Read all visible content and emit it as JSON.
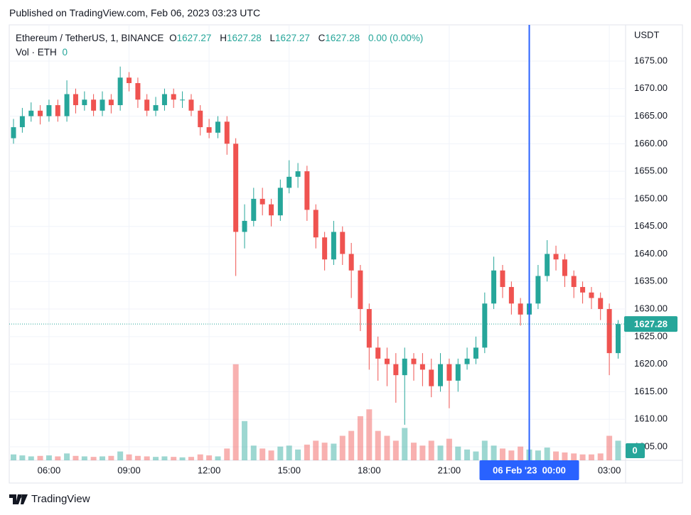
{
  "published": "Published on TradingView.com, Feb 06, 2023 03:23 UTC",
  "brand": "TradingView",
  "chart_data": {
    "type": "candlestick",
    "legend": {
      "symbol": "Ethereum / TetherUS, 1, BINANCE",
      "open_label": "O",
      "open": 1627.27,
      "high_label": "H",
      "high": 1627.28,
      "low_label": "L",
      "low": 1627.27,
      "close_label": "C",
      "close": 1627.28,
      "change": "0.00 (0.00%)",
      "volume_label": "Vol · ETH",
      "volume": 0
    },
    "currency": "USDT",
    "x": [
      4.67,
      5,
      5.33,
      5.67,
      6,
      6.33,
      6.67,
      7,
      7.33,
      7.67,
      8,
      8.33,
      8.67,
      9,
      9.33,
      9.67,
      10,
      10.33,
      10.67,
      11,
      11.33,
      11.67,
      12,
      12.33,
      12.67,
      13,
      13.33,
      13.67,
      14,
      14.33,
      14.67,
      15,
      15.33,
      15.67,
      16,
      16.33,
      16.67,
      17,
      17.33,
      17.67,
      18,
      18.33,
      18.67,
      19,
      19.33,
      19.67,
      20,
      20.33,
      20.67,
      21,
      21.33,
      21.67,
      22,
      22.33,
      22.67,
      23,
      23.33,
      23.67,
      24,
      24.33,
      24.67,
      25,
      25.33,
      25.67,
      26,
      26.33,
      26.67,
      27,
      27.33
    ],
    "open": [
      1661,
      1663,
      1665,
      1666,
      1665,
      1667,
      1665,
      1669,
      1667,
      1668,
      1666,
      1668,
      1667,
      1672,
      1671,
      1668,
      1666,
      1667,
      1669,
      1668,
      1668,
      1666,
      1663,
      1662,
      1664,
      1660,
      1644,
      1646,
      1650,
      1649,
      1647,
      1652,
      1654,
      1655,
      1648,
      1643,
      1639,
      1644,
      1640,
      1637,
      1630,
      1623,
      1621,
      1620,
      1618,
      1621,
      1620,
      1619,
      1616,
      1620,
      1617,
      1620,
      1621,
      1623,
      1631,
      1637,
      1634,
      1631,
      1629,
      1631,
      1636,
      1640,
      1639,
      1636,
      1634,
      1633,
      1632,
      1630,
      1622
    ],
    "high": [
      1664.5,
      1666.5,
      1667.5,
      1667,
      1668,
      1668,
      1671.5,
      1670,
      1669.5,
      1669,
      1669.5,
      1669,
      1674,
      1673,
      1672,
      1669,
      1668.5,
      1670,
      1670,
      1669.5,
      1669,
      1667,
      1664.5,
      1665,
      1665,
      1661,
      1649,
      1652,
      1652,
      1650,
      1653.5,
      1657,
      1656.5,
      1656,
      1649,
      1644,
      1646,
      1645,
      1642,
      1638,
      1631,
      1625,
      1623,
      1622,
      1623,
      1622,
      1622,
      1621,
      1622,
      1621,
      1621,
      1623,
      1625,
      1633,
      1639.5,
      1638,
      1635,
      1632,
      1633,
      1638,
      1642.5,
      1641.5,
      1640,
      1637,
      1635,
      1634,
      1633,
      1631,
      1628
    ],
    "low": [
      1660,
      1662,
      1664,
      1663.5,
      1664,
      1664,
      1664,
      1665.5,
      1666,
      1665,
      1665,
      1665.5,
      1666,
      1669.5,
      1666.5,
      1665,
      1665,
      1666,
      1666.5,
      1666.5,
      1665,
      1661.5,
      1661,
      1661,
      1658,
      1636,
      1641,
      1645,
      1647,
      1645,
      1646,
      1651,
      1652,
      1646,
      1641,
      1637,
      1638,
      1638,
      1632,
      1626,
      1619,
      1617,
      1616,
      1613,
      1609,
      1617,
      1616,
      1614,
      1615,
      1612,
      1615,
      1619,
      1620,
      1622,
      1630,
      1632,
      1629,
      1627,
      1628,
      1630,
      1635,
      1637,
      1634,
      1632,
      1631,
      1630,
      1628,
      1618,
      1621
    ],
    "close": [
      1663,
      1665,
      1666,
      1665,
      1667,
      1665,
      1669,
      1667,
      1668,
      1666,
      1668,
      1667,
      1672,
      1671,
      1668,
      1666,
      1667,
      1669,
      1668,
      1668,
      1666,
      1663,
      1662,
      1664,
      1660,
      1644,
      1646,
      1650,
      1649,
      1647,
      1652,
      1654,
      1655,
      1648,
      1643,
      1639,
      1644,
      1640,
      1637,
      1630,
      1623,
      1621,
      1620,
      1618,
      1621,
      1620,
      1619,
      1616,
      1620,
      1617,
      1620,
      1621,
      1623,
      1631,
      1637,
      1634,
      1631,
      1629,
      1631,
      1636,
      1640,
      1639,
      1636,
      1634,
      1633,
      1632,
      1630,
      1622,
      1627.28
    ],
    "volume": [
      60,
      50,
      40,
      45,
      50,
      40,
      70,
      45,
      40,
      35,
      40,
      45,
      90,
      60,
      45,
      40,
      35,
      40,
      35,
      30,
      35,
      60,
      50,
      40,
      120,
      980,
      400,
      150,
      120,
      100,
      140,
      150,
      110,
      160,
      200,
      180,
      170,
      250,
      300,
      450,
      520,
      300,
      250,
      200,
      330,
      180,
      150,
      200,
      150,
      220,
      140,
      110,
      90,
      200,
      150,
      120,
      100,
      140,
      110,
      100,
      130,
      90,
      80,
      70,
      60,
      60,
      70,
      250,
      200
    ],
    "xlim": [
      4.51,
      27.61
    ],
    "xticks": [
      {
        "value": 6,
        "label": "06:00"
      },
      {
        "value": 9,
        "label": "09:00"
      },
      {
        "value": 12,
        "label": "12:00"
      },
      {
        "value": 15,
        "label": "15:00"
      },
      {
        "value": 18,
        "label": "18:00"
      },
      {
        "value": 21,
        "label": "21:00"
      },
      {
        "value": 27,
        "label": "03:00"
      }
    ],
    "ylim": [
      1602.55,
      1681.57
    ],
    "yticks": [
      {
        "value": 1605,
        "label": "1605.00"
      },
      {
        "value": 1610,
        "label": "1610.00"
      },
      {
        "value": 1615,
        "label": "1615.00"
      },
      {
        "value": 1620,
        "label": "1620.00"
      },
      {
        "value": 1625,
        "label": "1625.00"
      },
      {
        "value": 1630,
        "label": "1630.00"
      },
      {
        "value": 1635,
        "label": "1635.00"
      },
      {
        "value": 1640,
        "label": "1640.00"
      },
      {
        "value": 1645,
        "label": "1645.00"
      },
      {
        "value": 1650,
        "label": "1650.00"
      },
      {
        "value": 1655,
        "label": "1655.00"
      },
      {
        "value": 1660,
        "label": "1660.00"
      },
      {
        "value": 1665,
        "label": "1665.00"
      },
      {
        "value": 1670,
        "label": "1670.00"
      },
      {
        "value": 1675,
        "label": "1675.00"
      }
    ],
    "volume_ylim": [
      0,
      1000
    ],
    "up_color": "#26a69a",
    "down_color": "#ef5350",
    "grid": true,
    "last_price": 1627.28,
    "crosshair": {
      "x": 24,
      "label": "06 Feb '23  00:00",
      "color": "#2962ff"
    }
  }
}
